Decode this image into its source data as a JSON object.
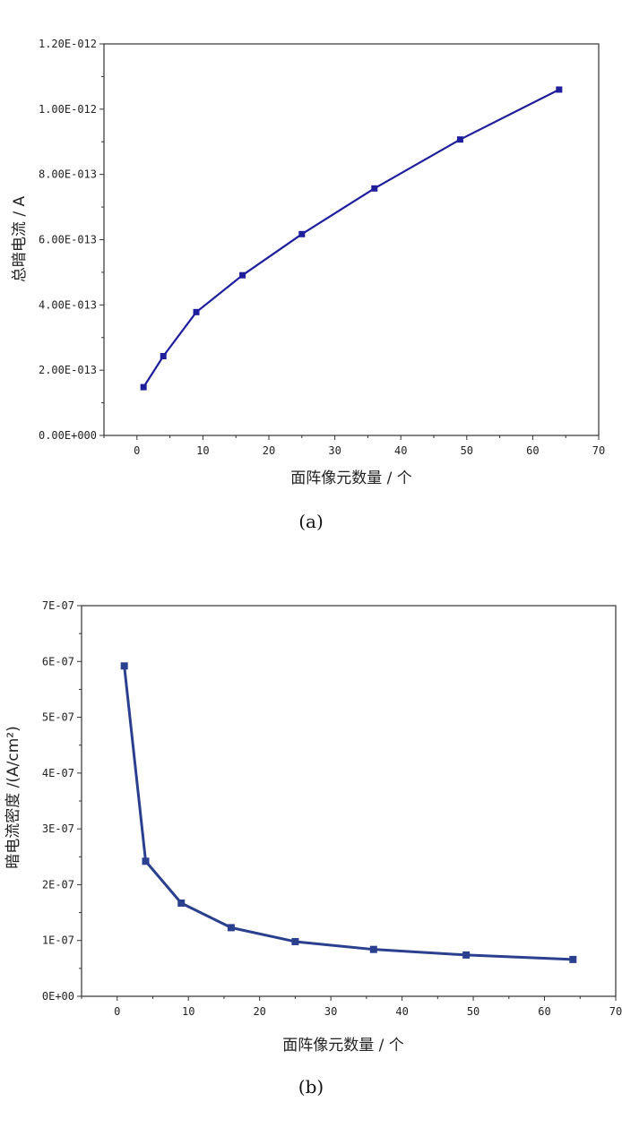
{
  "chart_data": [
    {
      "type": "line",
      "caption": "(a)",
      "xlabel": "面阵像元数量 / 个",
      "ylabel": "总暗电流 / A",
      "xlim": [
        -5,
        70
      ],
      "ylim": [
        0,
        1.2e-12
      ],
      "x_ticks": [
        "0",
        "10",
        "20",
        "30",
        "40",
        "50",
        "60",
        "70"
      ],
      "y_ticks": [
        "0.00E+000",
        "2.00E-013",
        "4.00E-013",
        "6.00E-013",
        "8.00E-013",
        "1.00E-012",
        "1.20E-012"
      ],
      "color": "#1f1f9e",
      "x": [
        1,
        4,
        9,
        16,
        25,
        36,
        49,
        64
      ],
      "values": [
        1.48e-13,
        2.43e-13,
        3.78e-13,
        4.91e-13,
        6.17e-13,
        7.57e-13,
        9.07e-13,
        1.06e-12
      ],
      "grid": false
    },
    {
      "type": "line",
      "caption": "(b)",
      "xlabel": "面阵像元数量 / 个",
      "ylabel": "暗电流密度 /(A/cm²)",
      "xlim": [
        -5,
        70
      ],
      "ylim": [
        0,
        7e-07
      ],
      "x_ticks": [
        "0",
        "10",
        "20",
        "30",
        "40",
        "50",
        "60",
        "70"
      ],
      "y_ticks": [
        "0E+00",
        "1E-07",
        "2E-07",
        "3E-07",
        "4E-07",
        "5E-07",
        "6E-07",
        "7E-07"
      ],
      "color": "#2b3f8f",
      "x": [
        1,
        4,
        9,
        16,
        25,
        36,
        49,
        64
      ],
      "values": [
        5.92e-07,
        2.42e-07,
        1.67e-07,
        1.23e-07,
        9.8e-08,
        8.4e-08,
        7.4e-08,
        6.6e-08
      ],
      "grid": false
    }
  ]
}
